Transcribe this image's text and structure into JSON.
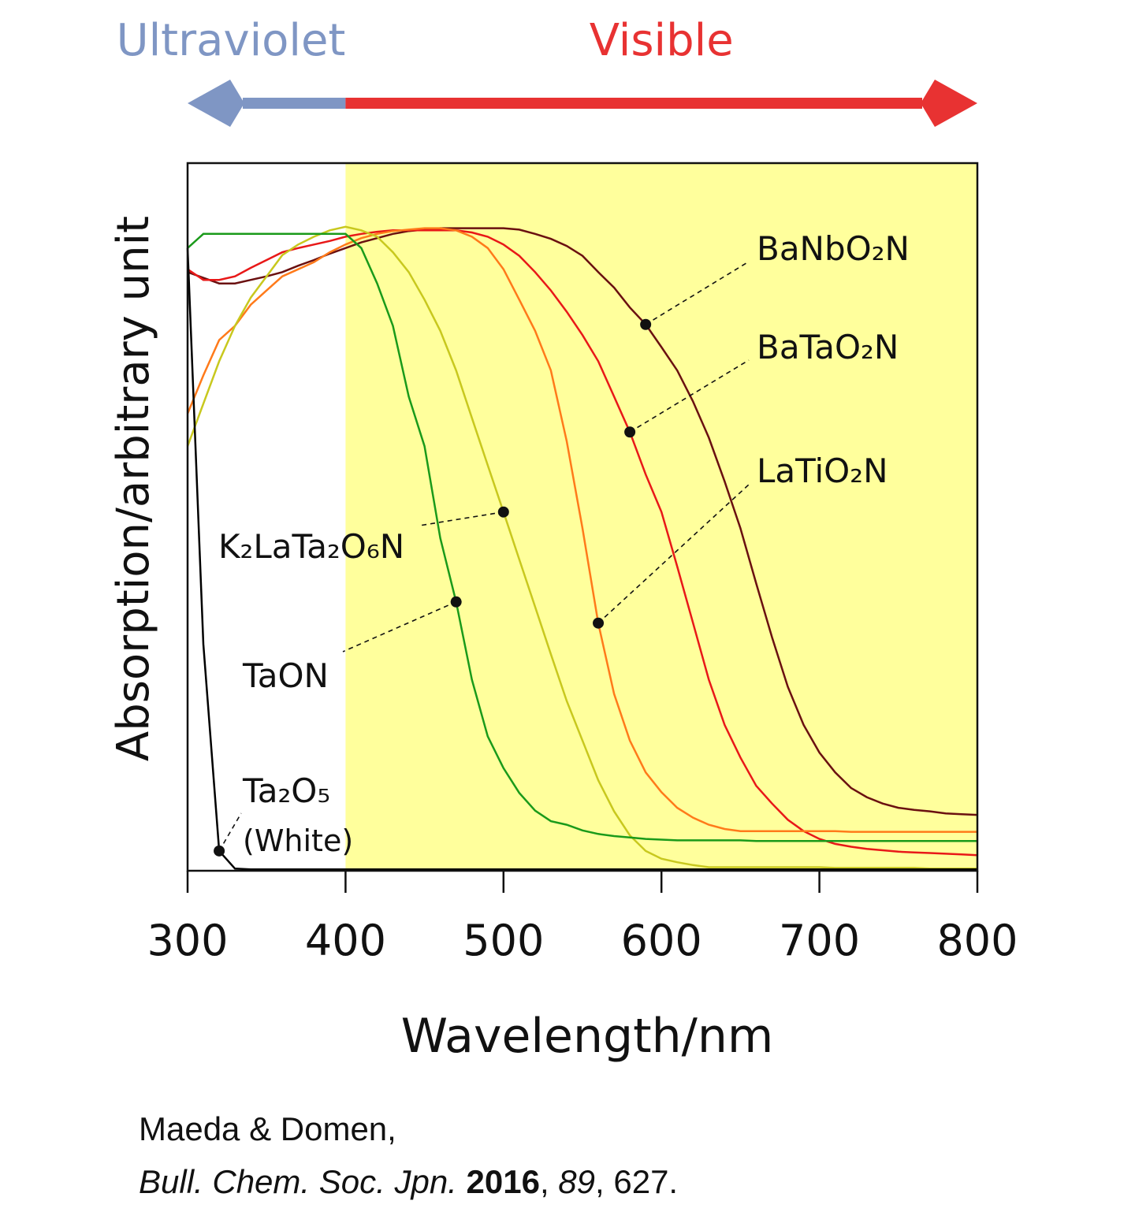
{
  "chart_data": {
    "type": "line",
    "xlabel": "Wavelength/nm",
    "ylabel": "Absorption/arbitrary unit",
    "xlim": [
      300,
      800
    ],
    "ylim": [
      0,
      1
    ],
    "xticks": [
      300,
      400,
      500,
      600,
      700,
      800
    ],
    "grid": false,
    "bands": [
      {
        "name": "Ultraviolet",
        "color": "#7f96c4",
        "range": [
          300,
          400
        ]
      },
      {
        "name": "Visible",
        "color": "#e83232",
        "range": [
          400,
          800
        ],
        "fill": "#ffff9c"
      }
    ],
    "x": [
      300,
      310,
      320,
      330,
      340,
      350,
      360,
      370,
      380,
      390,
      400,
      410,
      420,
      430,
      440,
      450,
      460,
      470,
      480,
      490,
      500,
      510,
      520,
      530,
      540,
      550,
      560,
      570,
      580,
      590,
      600,
      610,
      620,
      630,
      640,
      650,
      660,
      670,
      680,
      690,
      700,
      710,
      720,
      730,
      740,
      750,
      760,
      770,
      780,
      790,
      800
    ],
    "series": [
      {
        "name": "BaNbO₂N",
        "color": "#6a1010",
        "values": [
          0.846,
          0.838,
          0.83,
          0.83,
          0.835,
          0.84,
          0.846,
          0.855,
          0.863,
          0.872,
          0.88,
          0.888,
          0.894,
          0.9,
          0.904,
          0.906,
          0.908,
          0.908,
          0.908,
          0.908,
          0.908,
          0.906,
          0.9,
          0.893,
          0.883,
          0.869,
          0.846,
          0.824,
          0.796,
          0.772,
          0.74,
          0.707,
          0.663,
          0.612,
          0.55,
          0.484,
          0.406,
          0.33,
          0.26,
          0.206,
          0.167,
          0.139,
          0.117,
          0.104,
          0.095,
          0.089,
          0.086,
          0.084,
          0.081,
          0.08,
          0.079
        ]
      },
      {
        "name": "BaTaO₂N",
        "color": "#e81818",
        "values": [
          0.85,
          0.835,
          0.835,
          0.84,
          0.852,
          0.863,
          0.874,
          0.88,
          0.885,
          0.89,
          0.896,
          0.9,
          0.903,
          0.905,
          0.905,
          0.905,
          0.905,
          0.905,
          0.902,
          0.896,
          0.885,
          0.869,
          0.846,
          0.82,
          0.79,
          0.757,
          0.72,
          0.67,
          0.62,
          0.56,
          0.507,
          0.43,
          0.35,
          0.27,
          0.206,
          0.16,
          0.12,
          0.095,
          0.072,
          0.056,
          0.045,
          0.038,
          0.034,
          0.031,
          0.029,
          0.027,
          0.026,
          0.025,
          0.024,
          0.023,
          0.022
        ]
      },
      {
        "name": "LaTiO₂N",
        "color": "#ff7a1a",
        "values": [
          0.646,
          0.7,
          0.75,
          0.77,
          0.8,
          0.82,
          0.84,
          0.85,
          0.86,
          0.874,
          0.885,
          0.894,
          0.9,
          0.904,
          0.906,
          0.908,
          0.908,
          0.905,
          0.896,
          0.88,
          0.85,
          0.807,
          0.763,
          0.707,
          0.607,
          0.484,
          0.35,
          0.25,
          0.184,
          0.139,
          0.111,
          0.089,
          0.075,
          0.065,
          0.059,
          0.056,
          0.056,
          0.056,
          0.056,
          0.056,
          0.056,
          0.056,
          0.055,
          0.055,
          0.055,
          0.055,
          0.055,
          0.055,
          0.055,
          0.055,
          0.055
        ]
      },
      {
        "name": "K₂LaTa₂O₆N",
        "color": "#c8c81e",
        "values": [
          0.6,
          0.66,
          0.72,
          0.77,
          0.81,
          0.84,
          0.87,
          0.885,
          0.896,
          0.905,
          0.91,
          0.905,
          0.896,
          0.874,
          0.846,
          0.807,
          0.763,
          0.707,
          0.64,
          0.573,
          0.507,
          0.44,
          0.373,
          0.306,
          0.24,
          0.184,
          0.128,
          0.084,
          0.05,
          0.028,
          0.017,
          0.012,
          0.008,
          0.005,
          0.005,
          0.005,
          0.005,
          0.005,
          0.005,
          0.005,
          0.005,
          0.004,
          0.004,
          0.004,
          0.004,
          0.004,
          0.004,
          0.003,
          0.003,
          0.003,
          0.003
        ]
      },
      {
        "name": "TaON",
        "color": "#1a9a1a",
        "values": [
          0.88,
          0.9,
          0.9,
          0.9,
          0.9,
          0.9,
          0.9,
          0.9,
          0.9,
          0.9,
          0.9,
          0.88,
          0.83,
          0.77,
          0.67,
          0.6,
          0.47,
          0.38,
          0.27,
          0.19,
          0.145,
          0.11,
          0.085,
          0.07,
          0.065,
          0.057,
          0.052,
          0.049,
          0.047,
          0.045,
          0.044,
          0.043,
          0.043,
          0.043,
          0.043,
          0.043,
          0.042,
          0.042,
          0.042,
          0.042,
          0.042,
          0.042,
          0.042,
          0.042,
          0.042,
          0.042,
          0.042,
          0.042,
          0.042,
          0.042,
          0.042
        ]
      },
      {
        "name": "Ta₂O₅",
        "note": "(White)",
        "color": "#000000",
        "values": [
          0.88,
          0.32,
          0.028,
          0.003,
          0.002,
          0.002,
          0.002,
          0.002,
          0.002,
          0.002,
          0.002,
          0.002,
          0.002,
          0.002,
          0.002,
          0.002,
          0.002,
          0.002,
          0.002,
          0.002,
          0.002,
          0.002,
          0.002,
          0.002,
          0.002,
          0.002,
          0.002,
          0.002,
          0.002,
          0.002,
          0.002,
          0.002,
          0.002,
          0.002,
          0.002,
          0.002,
          0.002,
          0.002,
          0.002,
          0.002,
          0.002,
          0.002,
          0.002,
          0.002,
          0.002,
          0.002,
          0.002,
          0.002,
          0.002,
          0.002,
          0.002
        ]
      }
    ]
  },
  "citation": {
    "line1": "Maeda & Domen,",
    "line2": [
      {
        "text": "Bull. Chem. Soc. Jpn.",
        "style": "italic"
      },
      {
        "text": " "
      },
      {
        "text": "2016",
        "style": "bold"
      },
      {
        "text": ", "
      },
      {
        "text": "89",
        "style": "italic"
      },
      {
        "text": ", 627."
      }
    ]
  }
}
